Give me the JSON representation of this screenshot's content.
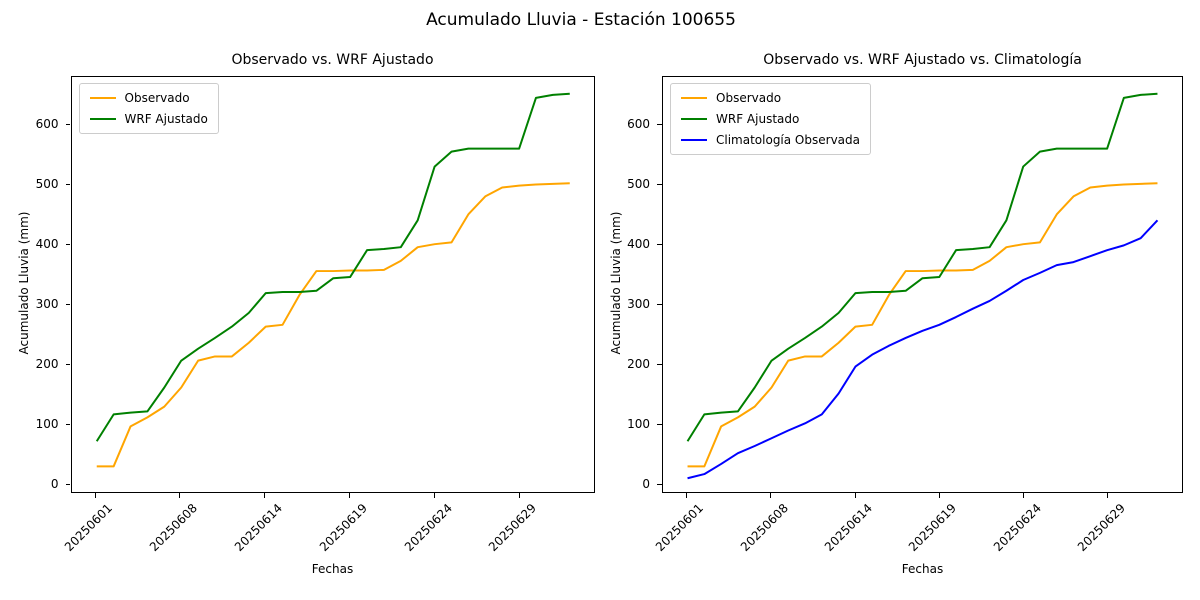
{
  "suptitle": "Acumulado Lluvia - Estación 100655",
  "chart_data": [
    {
      "type": "line",
      "title": "Observado vs. WRF Ajustado",
      "xlabel": "Fechas",
      "ylabel": "Acumulado Lluvia (mm)",
      "legend_position": "upper left",
      "grid": false,
      "n_points": 29,
      "ylim": [
        -15,
        680
      ],
      "y_ticks": [
        0,
        100,
        200,
        300,
        400,
        500,
        600
      ],
      "x_tick_indices": [
        0,
        5,
        10,
        15,
        20,
        25
      ],
      "x_tick_labels": [
        "20250601",
        "20250608",
        "20250614",
        "20250619",
        "20250624",
        "20250629"
      ],
      "series": [
        {
          "name": "Observado",
          "color": "#FFA500",
          "values": [
            28,
            28,
            95,
            110,
            128,
            160,
            205,
            212,
            212,
            235,
            262,
            265,
            315,
            355,
            355,
            356,
            356,
            357,
            372,
            395,
            400,
            403,
            450,
            480,
            495,
            498,
            500,
            501,
            502
          ]
        },
        {
          "name": "WRF Ajustado",
          "color": "#008000",
          "values": [
            70,
            115,
            118,
            120,
            160,
            205,
            225,
            243,
            262,
            285,
            318,
            320,
            320,
            322,
            343,
            345,
            390,
            392,
            395,
            440,
            530,
            555,
            560,
            560,
            560,
            560,
            645,
            650,
            652
          ]
        }
      ]
    },
    {
      "type": "line",
      "title": "Observado vs. WRF Ajustado vs. Climatología",
      "xlabel": "Fechas",
      "ylabel": "Acumulado Lluvia (mm)",
      "legend_position": "upper left",
      "grid": false,
      "n_points": 29,
      "ylim": [
        -15,
        680
      ],
      "y_ticks": [
        0,
        100,
        200,
        300,
        400,
        500,
        600
      ],
      "x_tick_indices": [
        0,
        5,
        10,
        15,
        20,
        25
      ],
      "x_tick_labels": [
        "20250601",
        "20250608",
        "20250614",
        "20250619",
        "20250624",
        "20250629"
      ],
      "series": [
        {
          "name": "Observado",
          "color": "#FFA500",
          "values": [
            28,
            28,
            95,
            110,
            128,
            160,
            205,
            212,
            212,
            235,
            262,
            265,
            315,
            355,
            355,
            356,
            356,
            357,
            372,
            395,
            400,
            403,
            450,
            480,
            495,
            498,
            500,
            501,
            502
          ]
        },
        {
          "name": "WRF Ajustado",
          "color": "#008000",
          "values": [
            70,
            115,
            118,
            120,
            160,
            205,
            225,
            243,
            262,
            285,
            318,
            320,
            320,
            322,
            343,
            345,
            390,
            392,
            395,
            440,
            530,
            555,
            560,
            560,
            560,
            560,
            645,
            650,
            652
          ]
        },
        {
          "name": "Climatología Observada",
          "color": "#0000FF",
          "values": [
            8,
            15,
            32,
            50,
            62,
            75,
            88,
            100,
            115,
            150,
            195,
            215,
            230,
            243,
            255,
            265,
            278,
            292,
            305,
            322,
            340,
            352,
            365,
            370,
            380,
            390,
            398,
            410,
            440
          ]
        }
      ]
    }
  ]
}
